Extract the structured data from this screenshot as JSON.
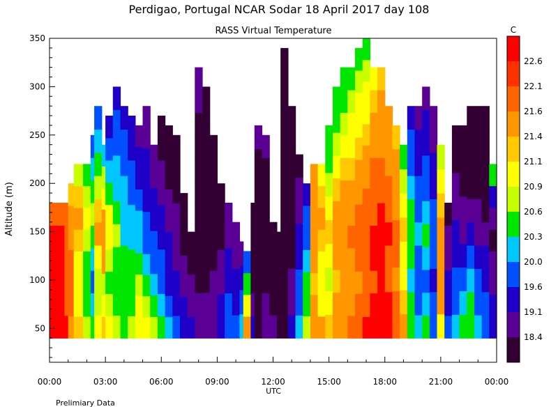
{
  "chart_data": {
    "type": "heatmap",
    "title": "Perdigao, Portugal  NCAR Sodar  18 April 2017  day 108",
    "subtitle": "RASS Virtual Temperature",
    "ylabel": "Altitude (m)",
    "xlabel": "UTC",
    "footnote": "Prelimiary Data",
    "ylim": [
      15,
      350
    ],
    "xlim": [
      0,
      24
    ],
    "y_ticks": [
      "50",
      "100",
      "150",
      "200",
      "250",
      "300",
      "350"
    ],
    "y_tick_values": [
      50,
      100,
      150,
      200,
      250,
      300,
      350
    ],
    "x_ticks": [
      "00:00",
      "03:00",
      "06:00",
      "09:00",
      "12:00",
      "15:00",
      "18:00",
      "21:00",
      "00:00"
    ],
    "x_tick_values": [
      0,
      3,
      6,
      9,
      12,
      15,
      18,
      21,
      24
    ],
    "colorbar": {
      "unit": "C",
      "labels": [
        "22.6",
        "22.1",
        "21.6",
        "21.4",
        "21.1",
        "20.9",
        "20.6",
        "20.3",
        "20.0",
        "19.6",
        "19.1",
        "18.4"
      ],
      "colors": [
        "#ff0000",
        "#ff3200",
        "#ff6400",
        "#ff9600",
        "#ffc800",
        "#ffff00",
        "#c8ff00",
        "#00e600",
        "#00c8ff",
        "#0050ff",
        "#1e00c8",
        "#5a0096",
        "#320032"
      ]
    },
    "data_bottom_altitude": 40,
    "column_width_hours": 0.2,
    "columns": [
      {
        "t": 0.0,
        "top": 180,
        "v": [
          22.8,
          22.8,
          22.8,
          22.6,
          22.6,
          22.2
        ]
      },
      {
        "t": 0.8,
        "top": 180,
        "v": [
          22.6,
          22.3,
          22.1,
          22.2,
          22.4,
          22.1
        ]
      },
      {
        "t": 1.0,
        "top": 200,
        "v": [
          22.0,
          22.2,
          22.3,
          22.1,
          21.8,
          21.6,
          21.4
        ]
      },
      {
        "t": 1.3,
        "top": 220,
        "v": [
          21.5,
          21.3,
          21.1,
          21.3,
          21.5,
          21.6,
          21.4,
          21.0
        ]
      },
      {
        "t": 1.8,
        "top": 220,
        "v": [
          21.0,
          20.8,
          20.6,
          20.8,
          21.0,
          21.2,
          20.9,
          20.6
        ]
      },
      {
        "t": 2.2,
        "top": 250,
        "v": [
          20.6,
          20.4,
          20.2,
          20.5,
          20.8,
          21.0,
          20.7,
          20.4,
          20.2
        ]
      },
      {
        "t": 2.4,
        "top": 280,
        "v": [
          21.2,
          21.0,
          20.9,
          21.3,
          21.6,
          21.4,
          21.0,
          20.6,
          20.4,
          20.2
        ]
      },
      {
        "t": 2.8,
        "top": 240,
        "v": [
          21.4,
          21.1,
          21.0,
          21.6,
          22.0,
          21.7,
          21.3,
          20.9,
          20.5
        ]
      },
      {
        "t": 3.0,
        "top": 270,
        "v": [
          21.1,
          20.9,
          20.7,
          21.0,
          21.3,
          21.1,
          20.8,
          20.4,
          20.0,
          19.7
        ]
      },
      {
        "t": 3.4,
        "top": 300,
        "v": [
          20.9,
          20.7,
          20.6,
          20.8,
          20.9,
          20.7,
          20.5,
          20.3,
          20.1,
          20.0,
          19.8
        ]
      },
      {
        "t": 3.8,
        "top": 280,
        "v": [
          20.8,
          20.7,
          20.6,
          20.6,
          20.5,
          20.4,
          20.3,
          20.2,
          20.0,
          19.9
        ]
      },
      {
        "t": 4.2,
        "top": 270,
        "v": [
          21.0,
          20.8,
          20.7,
          20.6,
          20.5,
          20.3,
          20.2,
          20.0,
          19.8,
          19.6
        ]
      },
      {
        "t": 4.6,
        "top": 260,
        "v": [
          21.3,
          21.1,
          20.9,
          20.7,
          20.5,
          20.3,
          20.1,
          19.9,
          19.7,
          19.5
        ]
      },
      {
        "t": 5.0,
        "top": 280,
        "v": [
          21.1,
          20.9,
          20.6,
          20.4,
          20.2,
          20.0,
          19.8,
          19.7,
          19.6,
          19.5,
          19.4
        ]
      },
      {
        "t": 5.4,
        "top": 240,
        "v": [
          20.9,
          20.7,
          20.4,
          20.2,
          20.0,
          19.8,
          19.6,
          19.4,
          19.2
        ]
      },
      {
        "t": 5.8,
        "top": 270,
        "v": [
          20.6,
          20.4,
          20.2,
          20.0,
          19.8,
          19.6,
          19.4,
          19.2,
          19.0,
          18.8
        ]
      },
      {
        "t": 6.2,
        "top": 260,
        "v": [
          20.3,
          20.1,
          19.9,
          19.7,
          19.6,
          19.4,
          19.2,
          19.0,
          18.8,
          18.6
        ]
      },
      {
        "t": 6.6,
        "top": 250,
        "v": [
          20.0,
          19.8,
          19.6,
          19.5,
          19.3,
          19.1,
          18.9,
          18.7,
          18.6
        ]
      },
      {
        "t": 7.0,
        "top": 190,
        "v": [
          19.8,
          19.6,
          19.4,
          19.2,
          19.0,
          18.8,
          18.6
        ]
      },
      {
        "t": 7.4,
        "top": 150,
        "v": [
          19.6,
          19.4,
          19.2,
          19.0,
          18.8
        ]
      },
      {
        "t": 7.8,
        "top": 320,
        "v": [
          19.4,
          19.2,
          19.0,
          18.8,
          18.6,
          18.5,
          18.5,
          18.5,
          18.6,
          18.9,
          19.1,
          19.2
        ]
      },
      {
        "t": 8.2,
        "top": 300,
        "v": [
          19.3,
          19.1,
          18.9,
          18.7,
          18.5,
          18.4,
          18.4,
          18.5,
          18.6,
          18.8,
          19.0
        ]
      },
      {
        "t": 8.6,
        "top": 250,
        "v": [
          19.5,
          19.3,
          19.1,
          18.9,
          18.7,
          18.6,
          18.5,
          18.6,
          18.7
        ]
      },
      {
        "t": 9.0,
        "top": 200,
        "v": [
          19.8,
          19.6,
          19.4,
          19.2,
          19.0,
          18.9,
          18.8
        ]
      },
      {
        "t": 9.4,
        "top": 180,
        "v": [
          20.2,
          20.0,
          19.8,
          19.6,
          19.4,
          19.2
        ]
      },
      {
        "t": 9.8,
        "top": 160,
        "v": [
          20.0,
          19.8,
          19.6,
          19.4,
          19.2
        ]
      },
      {
        "t": 10.2,
        "top": 140,
        "v": [
          20.4,
          20.1,
          19.8,
          19.5
        ]
      },
      {
        "t": 10.4,
        "top": 130,
        "v": [
          21.6,
          21.2,
          20.6,
          20.0
        ]
      },
      {
        "t": 10.8,
        "top": 180,
        "v": [
          19.6,
          19.2,
          19.0,
          18.8,
          18.6,
          18.5
        ]
      },
      {
        "t": 11.0,
        "top": 260,
        "v": [
          19.0,
          18.8,
          18.6,
          18.5,
          18.5,
          18.6,
          18.8,
          19.0,
          19.2
        ]
      },
      {
        "t": 11.4,
        "top": 250,
        "v": [
          19.4,
          19.2,
          19.0,
          18.9,
          18.8,
          18.7,
          18.8,
          19.0,
          19.2
        ]
      },
      {
        "t": 11.8,
        "top": 160,
        "v": [
          19.2,
          19.0,
          18.8,
          18.6,
          18.5
        ]
      },
      {
        "t": 12.2,
        "top": 150,
        "v": [
          18.8,
          18.6,
          18.5,
          18.4,
          18.4
        ]
      },
      {
        "t": 12.4,
        "top": 340,
        "v": [
          18.6,
          18.5,
          18.4,
          18.4,
          18.4,
          18.4,
          18.4,
          18.5,
          18.5,
          18.6,
          18.7,
          18.8,
          19.0
        ]
      },
      {
        "t": 12.8,
        "top": 280,
        "v": [
          19.6,
          19.4,
          19.2,
          19.0,
          18.8,
          18.7,
          18.6,
          18.5,
          18.6,
          18.8
        ]
      },
      {
        "t": 13.2,
        "top": 230,
        "v": [
          20.4,
          20.2,
          20.0,
          19.8,
          19.6,
          19.4,
          19.2,
          19.0
        ]
      },
      {
        "t": 13.6,
        "top": 200,
        "v": [
          21.0,
          20.8,
          20.6,
          20.4,
          20.2,
          20.0,
          19.8
        ]
      },
      {
        "t": 14.0,
        "top": 220,
        "v": [
          21.8,
          21.6,
          21.4,
          21.6,
          21.8,
          21.9,
          22.0,
          22.0
        ]
      },
      {
        "t": 14.4,
        "top": 220,
        "v": [
          21.6,
          21.3,
          21.1,
          21.3,
          21.5,
          21.6,
          21.4,
          21.2
        ]
      },
      {
        "t": 14.8,
        "top": 260,
        "v": [
          21.4,
          21.2,
          21.0,
          21.2,
          21.4,
          21.2,
          21.0,
          20.8,
          20.6
        ]
      },
      {
        "t": 15.2,
        "top": 300,
        "v": [
          21.8,
          21.6,
          21.4,
          21.6,
          21.8,
          21.6,
          21.4,
          21.2,
          21.0,
          20.8,
          20.6
        ]
      },
      {
        "t": 15.6,
        "top": 320,
        "v": [
          22.0,
          21.8,
          21.6,
          21.8,
          22.0,
          21.8,
          21.6,
          21.4,
          21.2,
          21.0,
          20.8,
          20.6
        ]
      },
      {
        "t": 16.0,
        "top": 320,
        "v": [
          22.2,
          22.0,
          21.8,
          22.0,
          22.1,
          21.9,
          21.7,
          21.5,
          21.3,
          21.1,
          20.9,
          20.7
        ]
      },
      {
        "t": 16.4,
        "top": 340,
        "v": [
          22.4,
          22.2,
          22.0,
          22.2,
          22.3,
          22.1,
          21.9,
          21.7,
          21.5,
          21.3,
          21.1,
          20.9,
          20.8
        ]
      },
      {
        "t": 16.8,
        "top": 350,
        "v": [
          22.6,
          22.4,
          22.2,
          22.4,
          22.5,
          22.3,
          22.1,
          21.9,
          21.7,
          21.5,
          21.3,
          21.1,
          20.9,
          20.6
        ]
      },
      {
        "t": 17.2,
        "top": 320,
        "v": [
          22.8,
          22.6,
          22.4,
          22.6,
          22.7,
          22.5,
          22.3,
          22.1,
          21.9,
          21.7,
          21.5,
          21.3
        ]
      },
      {
        "t": 17.6,
        "top": 320,
        "v": [
          22.8,
          22.8,
          22.6,
          22.7,
          22.8,
          22.6,
          22.4,
          22.2,
          22.0,
          21.8,
          21.6,
          21.4
        ]
      },
      {
        "t": 18.0,
        "top": 280,
        "v": [
          22.8,
          22.6,
          22.4,
          22.5,
          22.6,
          22.4,
          22.2,
          22.0,
          21.8,
          21.6
        ]
      },
      {
        "t": 18.4,
        "top": 260,
        "v": [
          22.4,
          22.2,
          22.0,
          22.1,
          22.2,
          22.0,
          21.8,
          21.6,
          21.4
        ]
      },
      {
        "t": 18.8,
        "top": 240,
        "v": [
          21.6,
          21.4,
          21.2,
          21.3,
          21.4,
          21.2,
          21.0,
          20.8
        ]
      },
      {
        "t": 19.2,
        "top": 280,
        "v": [
          20.8,
          20.6,
          20.4,
          20.6,
          20.8,
          20.6,
          20.4,
          20.2,
          20.0,
          19.8
        ]
      },
      {
        "t": 19.6,
        "top": 280,
        "v": [
          20.4,
          20.2,
          20.0,
          20.2,
          20.4,
          20.2,
          20.0,
          19.8,
          19.6,
          19.4
        ]
      },
      {
        "t": 20.0,
        "top": 300,
        "v": [
          20.6,
          20.4,
          20.2,
          20.4,
          20.6,
          20.4,
          20.2,
          20.0,
          19.8,
          19.6,
          19.4
        ]
      },
      {
        "t": 20.4,
        "top": 280,
        "v": [
          20.2,
          20.0,
          19.8,
          20.0,
          20.2,
          20.0,
          19.8,
          19.6,
          19.4,
          19.2
        ]
      },
      {
        "t": 20.8,
        "top": 240,
        "v": [
          21.2,
          21.6,
          22.0,
          21.8,
          21.6,
          21.4,
          21.2,
          21.0
        ]
      },
      {
        "t": 21.2,
        "top": 180,
        "v": [
          20.0,
          19.8,
          19.6,
          19.4,
          19.2,
          19.0
        ]
      },
      {
        "t": 21.6,
        "top": 260,
        "v": [
          20.4,
          20.2,
          20.0,
          19.8,
          19.6,
          19.4,
          19.2,
          19.0,
          18.8
        ]
      },
      {
        "t": 22.0,
        "top": 260,
        "v": [
          20.6,
          20.3,
          20.0,
          19.7,
          19.4,
          19.1,
          18.9,
          18.7,
          18.6
        ]
      },
      {
        "t": 22.4,
        "top": 280,
        "v": [
          20.8,
          20.6,
          20.3,
          20.0,
          19.6,
          19.2,
          18.9,
          18.7,
          18.5,
          18.5
        ]
      },
      {
        "t": 22.8,
        "top": 280,
        "v": [
          20.4,
          20.2,
          20.0,
          19.7,
          19.4,
          19.1,
          18.8,
          18.6,
          18.5,
          18.4
        ]
      },
      {
        "t": 23.2,
        "top": 280,
        "v": [
          20.2,
          20.0,
          19.8,
          19.6,
          19.3,
          19.0,
          18.8,
          18.6,
          18.5,
          18.4
        ]
      },
      {
        "t": 23.6,
        "top": 220,
        "v": [
          19.8,
          19.6,
          19.4,
          19.2,
          19.0,
          19.2,
          19.6,
          20.6
        ]
      }
    ]
  }
}
